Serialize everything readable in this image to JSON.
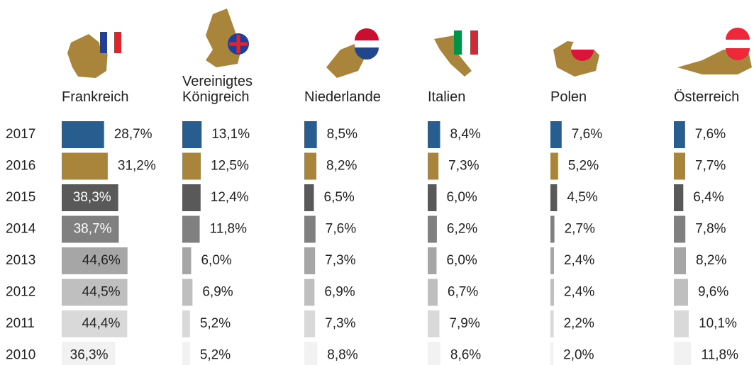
{
  "chart_data": {
    "type": "bar",
    "orientation": "horizontal",
    "categories": [
      "2017",
      "2016",
      "2015",
      "2014",
      "2013",
      "2012",
      "2011",
      "2010"
    ],
    "colors": [
      "#285d8f",
      "#a8853a",
      "#595959",
      "#808080",
      "#a6a6a6",
      "#bfbfbf",
      "#d9d9d9",
      "#f2f2f2"
    ],
    "series": [
      {
        "name": "Frankreich",
        "values": [
          28.7,
          31.2,
          38.3,
          38.7,
          44.6,
          44.5,
          44.4,
          36.3
        ],
        "value_labels": [
          "28,7%",
          "31,2%",
          "38,3%",
          "38,7%",
          "44,6%",
          "44,5%",
          "44,4%",
          "36,3%"
        ]
      },
      {
        "name": "Vereinigtes Königreich",
        "values": [
          13.1,
          12.5,
          12.4,
          11.8,
          6.0,
          6.9,
          5.2,
          5.2
        ],
        "value_labels": [
          "13,1%",
          "12,5%",
          "12,4%",
          "11,8%",
          "6,0%",
          "6,9%",
          "5,2%",
          "5,2%"
        ]
      },
      {
        "name": "Niederlande",
        "values": [
          8.5,
          8.2,
          6.5,
          7.6,
          7.3,
          6.9,
          7.3,
          8.8
        ],
        "value_labels": [
          "8,5%",
          "8,2%",
          "6,5%",
          "7,6%",
          "7,3%",
          "6,9%",
          "7,3%",
          "8,8%"
        ]
      },
      {
        "name": "Italien",
        "values": [
          8.4,
          7.3,
          6.0,
          6.2,
          6.0,
          6.7,
          7.9,
          8.6
        ],
        "value_labels": [
          "8,4%",
          "7,3%",
          "6,0%",
          "6,2%",
          "6,0%",
          "6,7%",
          "7,9%",
          "8,6%"
        ]
      },
      {
        "name": "Polen",
        "values": [
          7.6,
          5.2,
          4.5,
          2.7,
          2.4,
          2.4,
          2.2,
          2.0
        ],
        "value_labels": [
          "7,6%",
          "5,2%",
          "4,5%",
          "2,7%",
          "2,4%",
          "2,4%",
          "2,2%",
          "2,0%"
        ]
      },
      {
        "name": "Österreich",
        "values": [
          7.6,
          7.7,
          6.4,
          7.8,
          8.2,
          9.6,
          10.1,
          11.8
        ],
        "value_labels": [
          "7,6%",
          "7,7%",
          "6,4%",
          "7,8%",
          "8,2%",
          "9,6%",
          "10,1%",
          "11,8%"
        ]
      }
    ]
  }
}
